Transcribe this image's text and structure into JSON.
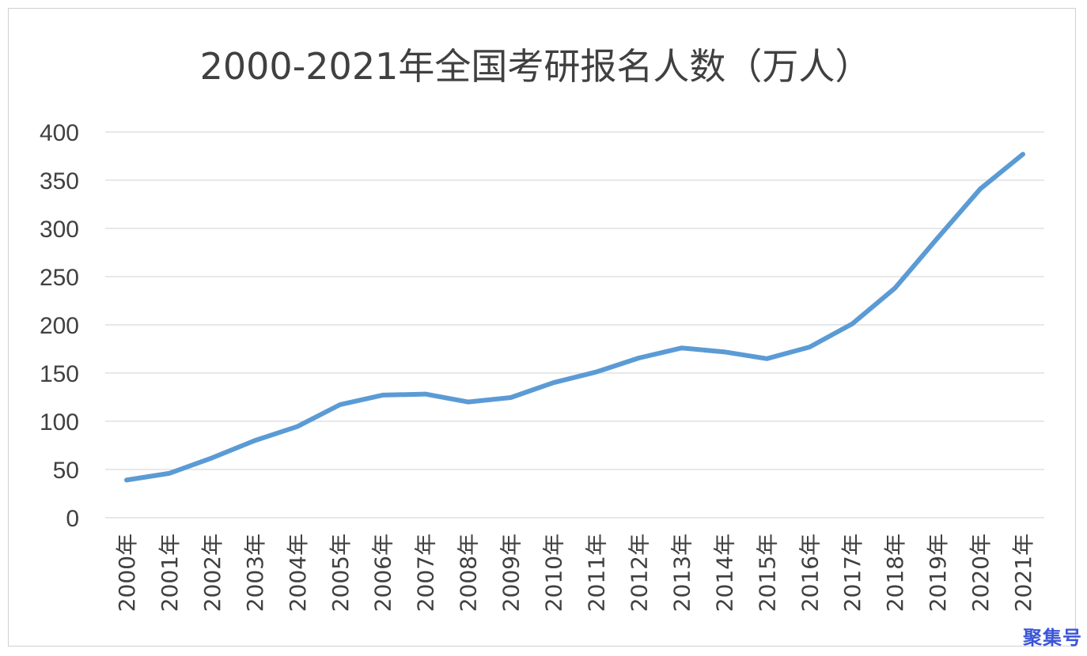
{
  "chart_data": {
    "type": "line",
    "title": "2000-2021年全国考研报名人数（万人）",
    "xlabel": "",
    "ylabel": "",
    "categories": [
      "2000年",
      "2001年",
      "2002年",
      "2003年",
      "2004年",
      "2005年",
      "2006年",
      "2007年",
      "2008年",
      "2009年",
      "2010年",
      "2011年",
      "2012年",
      "2013年",
      "2014年",
      "2015年",
      "2016年",
      "2017年",
      "2018年",
      "2019年",
      "2020年",
      "2021年"
    ],
    "series": [
      {
        "values": [
          39,
          46,
          62,
          79.9,
          94.5,
          117.2,
          127.1,
          128.2,
          120,
          124.6,
          140,
          151.1,
          165.6,
          176,
          172,
          164.9,
          177,
          201,
          238,
          290,
          341,
          377
        ]
      }
    ],
    "ylim": [
      0,
      400
    ],
    "yticks": [
      0,
      50,
      100,
      150,
      200,
      250,
      300,
      350,
      400
    ],
    "grid": true,
    "legend": "none",
    "colors": {
      "line": "#5b9bd5",
      "grid": "#d9d9d9",
      "text": "#404040"
    }
  },
  "watermark": "聚集号"
}
